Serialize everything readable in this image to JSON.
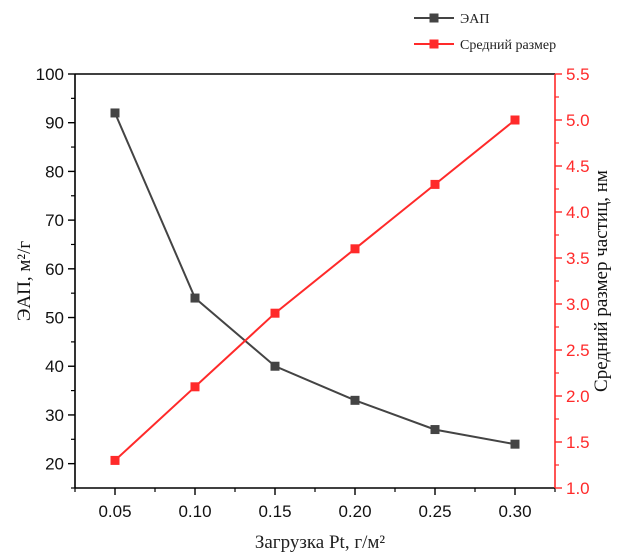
{
  "chart_data": {
    "type": "line",
    "x": [
      0.05,
      0.1,
      0.15,
      0.2,
      0.25,
      0.3
    ],
    "x_tick_labels": [
      "0.05",
      "0.10",
      "0.15",
      "0.20",
      "0.25",
      "0.30"
    ],
    "xlabel": "Загрузка Pt, г/м²",
    "y_left": {
      "label": "ЭАП, м²/г",
      "range": [
        15,
        100
      ],
      "ticks": [
        20,
        30,
        40,
        50,
        60,
        70,
        80,
        90,
        100
      ],
      "tick_labels": [
        "20",
        "30",
        "40",
        "50",
        "60",
        "70",
        "80",
        "90",
        "100"
      ],
      "color": "#000000"
    },
    "y_right": {
      "label": "Средний размер частиц, нм",
      "range": [
        1.0,
        5.5
      ],
      "ticks": [
        1.0,
        1.5,
        2.0,
        2.5,
        3.0,
        3.5,
        4.0,
        4.5,
        5.0,
        5.5
      ],
      "tick_labels": [
        "1.0",
        "1.5",
        "2.0",
        "2.5",
        "3.0",
        "3.5",
        "4.0",
        "4.5",
        "5.0",
        "5.5"
      ],
      "color": "#ff2a2a"
    },
    "series": [
      {
        "name": "ЭАП",
        "axis": "left",
        "color": "#444444",
        "values": [
          92,
          54,
          40,
          33,
          27,
          24
        ]
      },
      {
        "name": "Средний размер",
        "axis": "right",
        "color": "#ff2a2a",
        "values": [
          1.3,
          2.1,
          2.9,
          3.6,
          4.3,
          5.0
        ]
      }
    ],
    "legend_position": "top-right",
    "grid": false
  }
}
